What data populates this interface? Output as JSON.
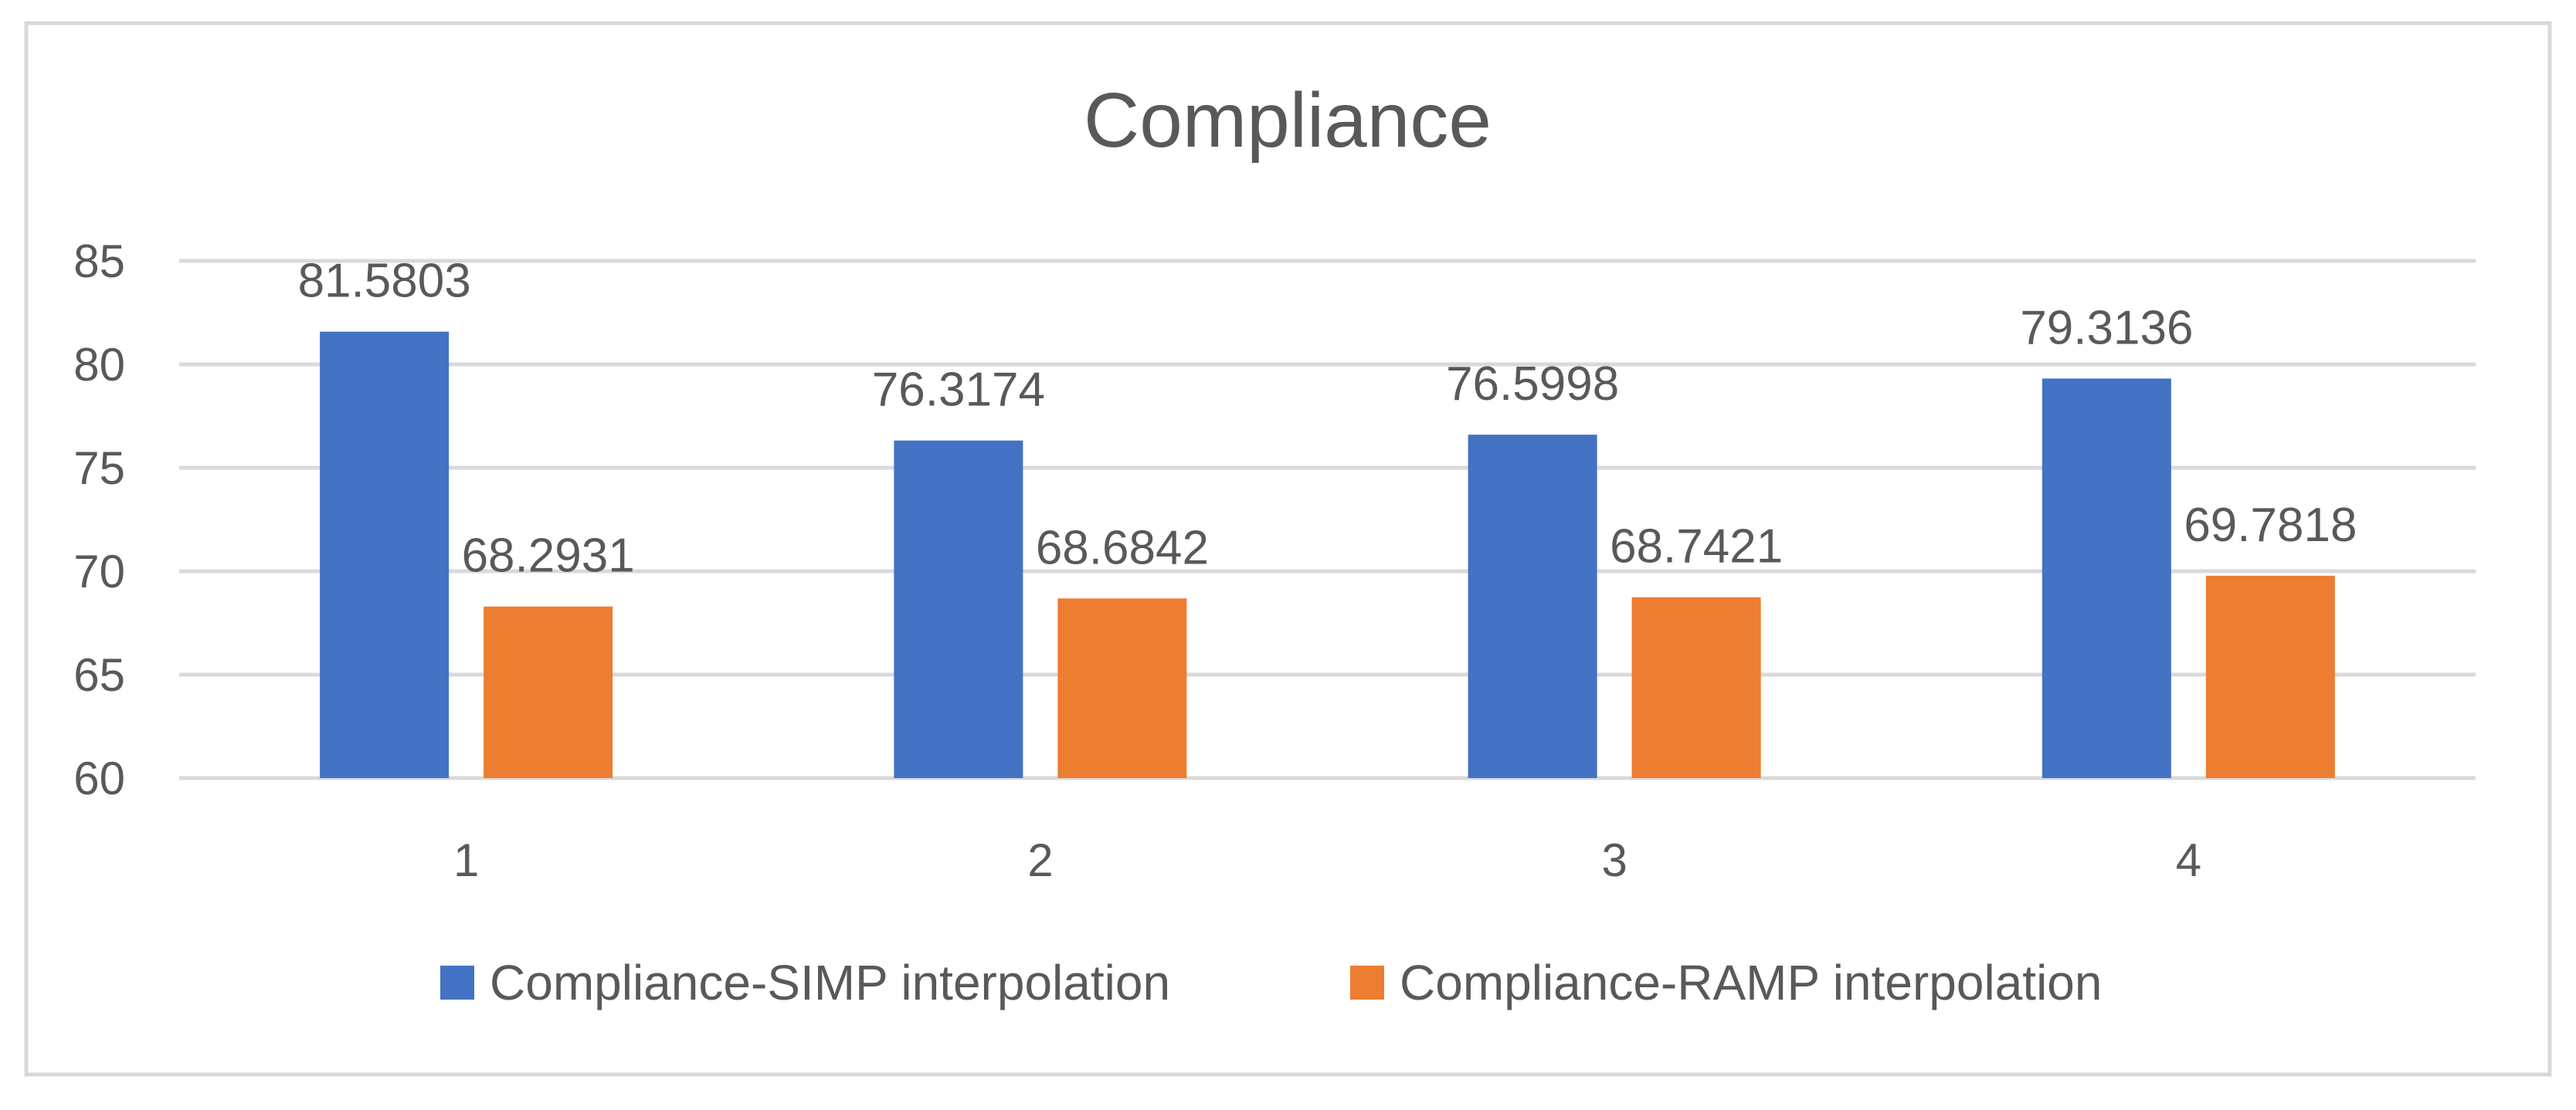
{
  "chart_data": {
    "type": "bar",
    "title": "Compliance",
    "categories": [
      "1",
      "2",
      "3",
      "4"
    ],
    "series": [
      {
        "name": "Compliance-SIMP interpolation",
        "values": [
          81.5803,
          76.3174,
          76.5998,
          79.3136
        ],
        "labels": [
          "81.5803",
          "76.3174",
          "76.5998",
          "79.3136"
        ],
        "color": "#4472C4"
      },
      {
        "name": "Compliance-RAMP interpolation",
        "values": [
          68.2931,
          68.6842,
          68.7421,
          69.7818
        ],
        "labels": [
          "68.2931",
          "68.6842",
          "68.7421",
          "69.7818"
        ],
        "color": "#ED7D31"
      }
    ],
    "ylim": [
      60,
      85
    ],
    "yticks": [
      60,
      65,
      70,
      75,
      80,
      85
    ],
    "ytick_labels": [
      "60",
      "65",
      "70",
      "75",
      "80",
      "85"
    ],
    "xlabel": "",
    "ylabel": "",
    "grid": true,
    "legend_position": "bottom"
  },
  "colors": {
    "grid": "#D9D9D9",
    "text": "#595959",
    "border": "#D9D9D9",
    "background": "#FFFFFF"
  }
}
